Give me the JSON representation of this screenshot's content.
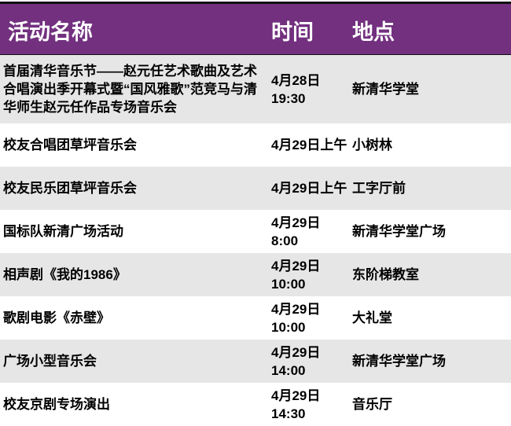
{
  "header": {
    "name": "活动名称",
    "time": "时间",
    "place": "地点"
  },
  "colors": {
    "header_bg": "#72307f",
    "stripe": "#e6e6e6"
  },
  "rows": [
    {
      "name": "首届清华音乐节——赵元任艺术歌曲及艺术合唱演出季开幕式暨“国风雅歌”范竞马与清华师生赵元任作品专场音乐会",
      "time": "4月28日 19:30",
      "place": "新清华学堂"
    },
    {
      "name": "校友合唱团草坪音乐会",
      "time": "4月29日上午",
      "place": "小树林"
    },
    {
      "name": "校友民乐团草坪音乐会",
      "time": "4月29日上午",
      "place": "工字厅前"
    },
    {
      "name": "国标队新清广场活动",
      "time": "4月29日 8:00",
      "place": "新清华学堂广场"
    },
    {
      "name": "相声剧《我的1986》",
      "time": "4月29日 10:00",
      "place": "东阶梯教室"
    },
    {
      "name": "歌剧电影《赤壁》",
      "time": "4月29日 10:00",
      "place": "大礼堂"
    },
    {
      "name": "广场小型音乐会",
      "time": "4月29日 14:00",
      "place": "新清华学堂广场"
    },
    {
      "name": "校友京剧专场演出",
      "time": "4月29日 14:30",
      "place": "音乐厅"
    }
  ]
}
